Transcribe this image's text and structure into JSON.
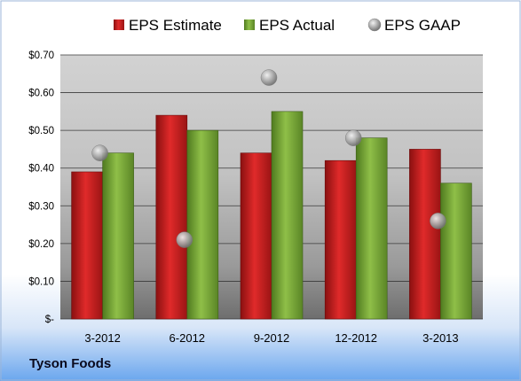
{
  "footer": {
    "company": "Tyson Foods"
  },
  "colors": {
    "estimate": "#cc1f1f",
    "actual": "#7fae3a",
    "gaap": "#b8b8b8"
  },
  "chart_data": {
    "type": "bar",
    "title": "",
    "xlabel": "",
    "ylabel": "",
    "categories": [
      "3-2012",
      "6-2012",
      "9-2012",
      "12-2012",
      "3-2013"
    ],
    "series": [
      {
        "name": "EPS Estimate",
        "kind": "bar",
        "values": [
          0.39,
          0.54,
          0.44,
          0.42,
          0.45
        ]
      },
      {
        "name": "EPS Actual",
        "kind": "bar",
        "values": [
          0.44,
          0.5,
          0.55,
          0.48,
          0.36
        ]
      },
      {
        "name": "EPS GAAP",
        "kind": "scatter",
        "values": [
          0.44,
          0.21,
          0.64,
          0.48,
          0.26
        ]
      }
    ],
    "ylim": [
      0,
      0.7
    ],
    "yticks": [
      0,
      0.1,
      0.2,
      0.3,
      0.4,
      0.5,
      0.6,
      0.7
    ],
    "ytick_labels": [
      "$-",
      "$0.10",
      "$0.20",
      "$0.30",
      "$0.40",
      "$0.50",
      "$0.60",
      "$0.70"
    ],
    "grid": true,
    "legend": "top"
  }
}
